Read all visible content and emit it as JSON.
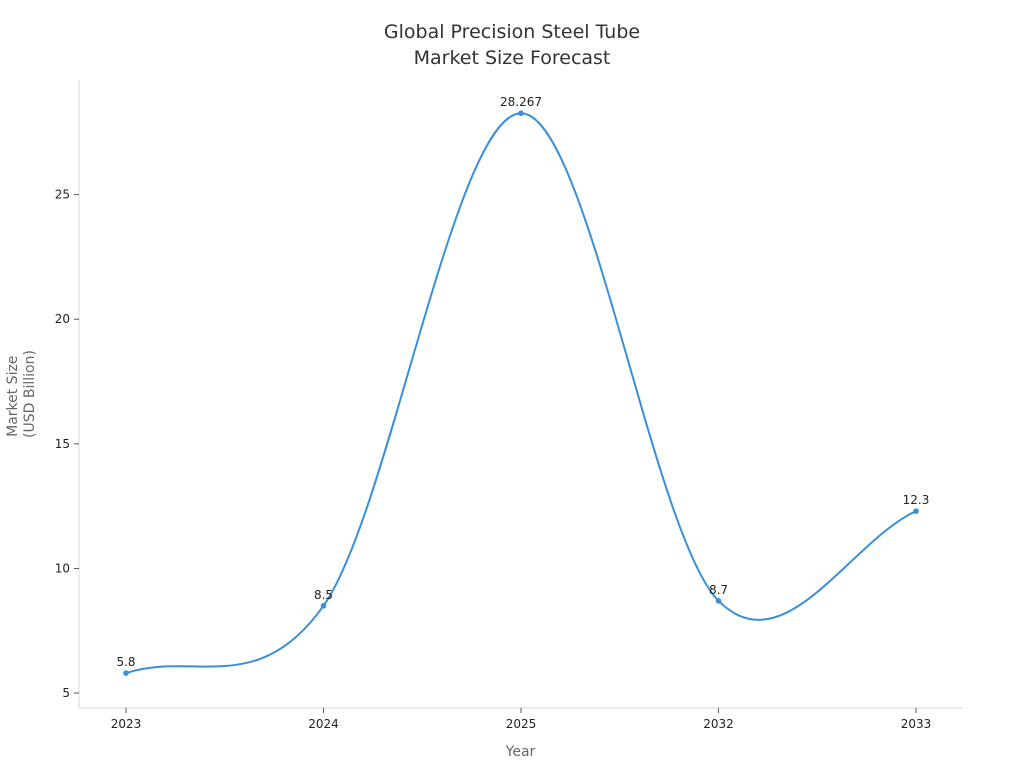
{
  "chart_data": {
    "type": "line",
    "title_lines": [
      "Global Precision Steel Tube",
      "Market Size Forecast"
    ],
    "xlabel": "Year",
    "ylabel_lines": [
      "Market Size",
      "(USD Billion)"
    ],
    "categories": [
      "2023",
      "2024",
      "2025",
      "2032",
      "2033"
    ],
    "series": [
      {
        "values": [
          5.8,
          8.5,
          28.267,
          8.7,
          12.3
        ],
        "color": "#3a8fd9"
      }
    ],
    "data_labels": [
      "5.8",
      "8.5",
      "28.267",
      "8.7",
      "12.3"
    ],
    "ylim": [
      4.4,
      29.6
    ],
    "yticks": [
      5,
      10,
      15,
      20,
      25
    ],
    "grid": false,
    "axis_color": "#d9d9d9",
    "line_color": "#3a8fd9"
  }
}
